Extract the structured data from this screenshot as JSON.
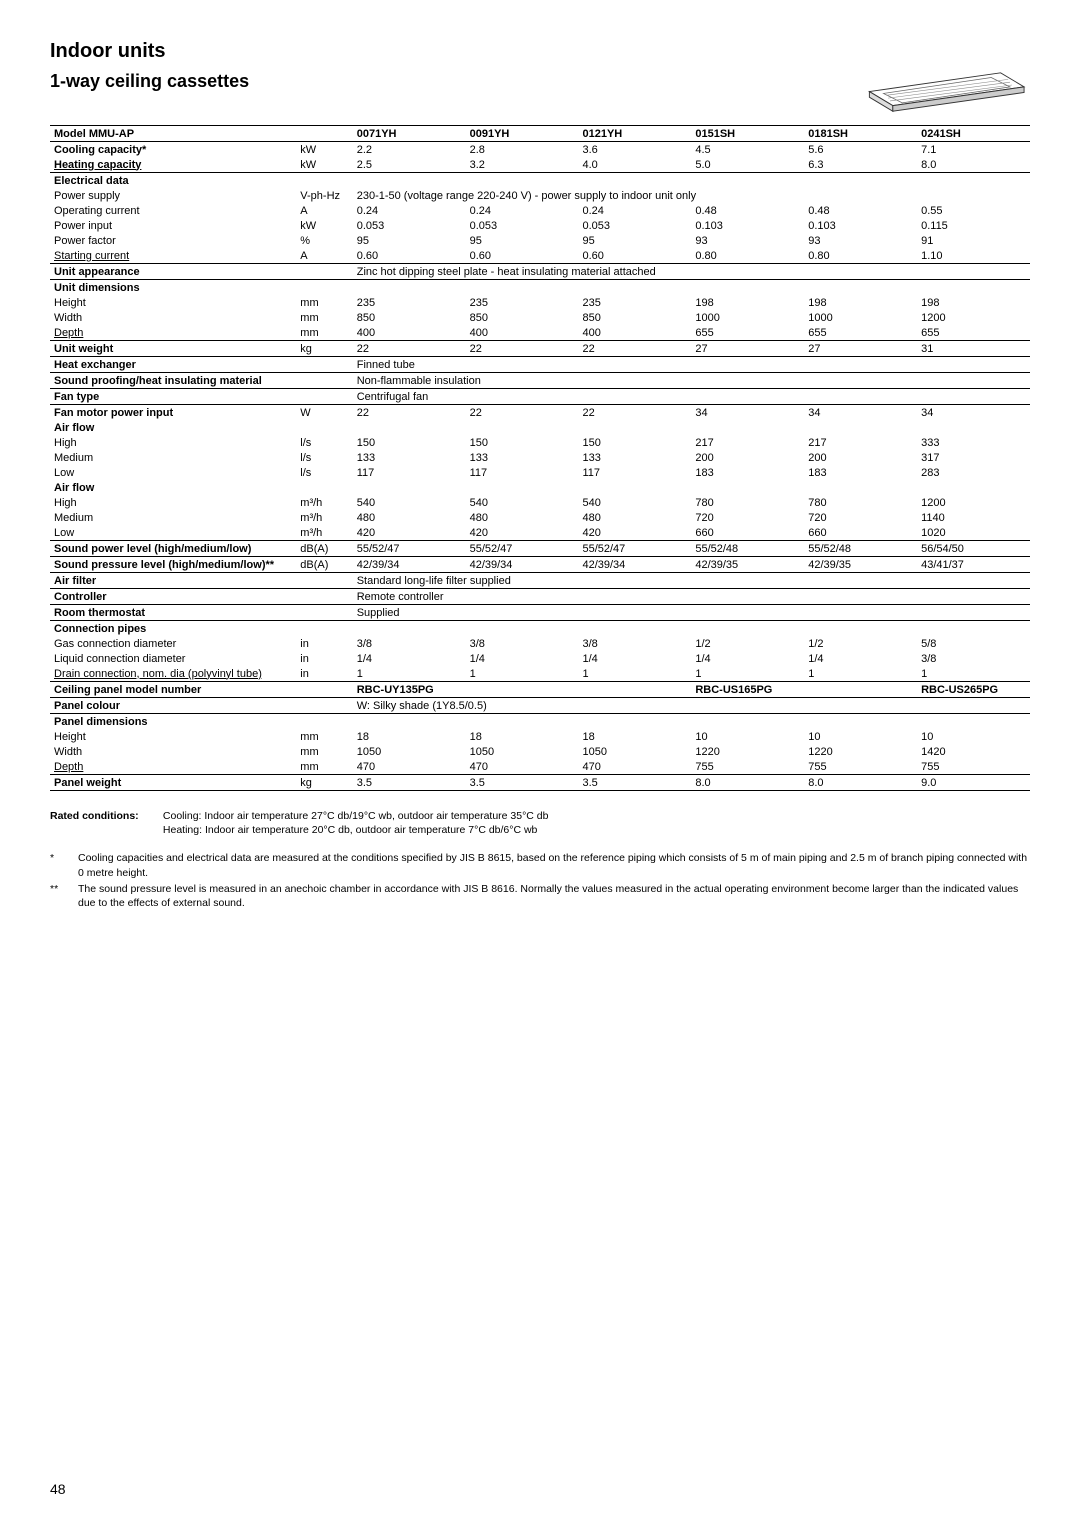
{
  "page_number": "48",
  "heading1": "Indoor units",
  "heading2": "1-way ceiling cassettes",
  "models": [
    "0071YH",
    "0091YH",
    "0121YH",
    "0151SH",
    "0181SH",
    "0241SH"
  ],
  "rows": [
    {
      "label": "Model MMU-AP",
      "unit": "",
      "vals": [
        "0071YH",
        "0091YH",
        "0121YH",
        "0151SH",
        "0181SH",
        "0241SH"
      ],
      "bold": true,
      "top": true,
      "bottom": true
    },
    {
      "label": "Cooling capacity*",
      "unit": "kW",
      "vals": [
        "2.2",
        "2.8",
        "3.6",
        "4.5",
        "5.6",
        "7.1"
      ],
      "bold": true
    },
    {
      "label": "Heating capacity",
      "unit": "kW",
      "vals": [
        "2.5",
        "3.2",
        "4.0",
        "5.0",
        "6.3",
        "8.0"
      ],
      "bold": true,
      "underline": true,
      "bottom": true
    },
    {
      "label": "Electrical data",
      "unit": "",
      "vals": [
        "",
        "",
        "",
        "",
        "",
        ""
      ],
      "bold": true
    },
    {
      "label": "Power supply",
      "unit": "V-ph-Hz",
      "vals": [
        "230-1-50 (voltage range 220-240 V) - power supply to indoor unit only",
        "",
        "",
        "",
        "",
        ""
      ],
      "span": 6
    },
    {
      "label": "Operating current",
      "unit": "A",
      "vals": [
        "0.24",
        "0.24",
        "0.24",
        "0.48",
        "0.48",
        "0.55"
      ]
    },
    {
      "label": "Power input",
      "unit": "kW",
      "vals": [
        "0.053",
        "0.053",
        "0.053",
        "0.103",
        "0.103",
        "0.115"
      ]
    },
    {
      "label": "Power factor",
      "unit": "%",
      "vals": [
        "95",
        "95",
        "95",
        "93",
        "93",
        "91"
      ]
    },
    {
      "label": "Starting current",
      "unit": "A",
      "vals": [
        "0.60",
        "0.60",
        "0.60",
        "0.80",
        "0.80",
        "1.10"
      ],
      "underline": true,
      "bottom": true
    },
    {
      "label": "Unit appearance",
      "unit": "",
      "vals": [
        "Zinc hot dipping steel plate - heat insulating material attached",
        "",
        "",
        "",
        "",
        ""
      ],
      "bold": true,
      "span": 6,
      "bottom": true
    },
    {
      "label": "Unit dimensions",
      "unit": "",
      "vals": [
        "",
        "",
        "",
        "",
        "",
        ""
      ],
      "bold": true
    },
    {
      "label": "Height",
      "unit": "mm",
      "vals": [
        "235",
        "235",
        "235",
        "198",
        "198",
        "198"
      ]
    },
    {
      "label": "Width",
      "unit": "mm",
      "vals": [
        "850",
        "850",
        "850",
        "1000",
        "1000",
        "1200"
      ]
    },
    {
      "label": "Depth",
      "unit": "mm",
      "vals": [
        "400",
        "400",
        "400",
        "655",
        "655",
        "655"
      ],
      "underline": true,
      "bottom": true
    },
    {
      "label": "Unit weight",
      "unit": "kg",
      "vals": [
        "22",
        "22",
        "22",
        "27",
        "27",
        "31"
      ],
      "bold": true,
      "bottom": true
    },
    {
      "label": "Heat exchanger",
      "unit": "",
      "vals": [
        "Finned tube",
        "",
        "",
        "",
        "",
        ""
      ],
      "bold": true,
      "span": 6,
      "bottom": true
    },
    {
      "label": "Sound proofing/heat insulating material",
      "unit": "",
      "vals": [
        "Non-flammable insulation",
        "",
        "",
        "",
        "",
        ""
      ],
      "bold": true,
      "span": 6,
      "bottom": true
    },
    {
      "label": "Fan type",
      "unit": "",
      "vals": [
        "Centrifugal fan",
        "",
        "",
        "",
        "",
        ""
      ],
      "bold": true,
      "span": 6,
      "bottom": true
    },
    {
      "label": "Fan motor power input",
      "unit": "W",
      "vals": [
        "22",
        "22",
        "22",
        "34",
        "34",
        "34"
      ],
      "bold": true
    },
    {
      "label": "Air flow",
      "unit": "",
      "vals": [
        "",
        "",
        "",
        "",
        "",
        ""
      ],
      "bold": true
    },
    {
      "label": "High",
      "unit": "l/s",
      "vals": [
        "150",
        "150",
        "150",
        "217",
        "217",
        "333"
      ]
    },
    {
      "label": "Medium",
      "unit": "l/s",
      "vals": [
        "133",
        "133",
        "133",
        "200",
        "200",
        "317"
      ]
    },
    {
      "label": "Low",
      "unit": "l/s",
      "vals": [
        "117",
        "117",
        "117",
        "183",
        "183",
        "283"
      ]
    },
    {
      "label": "Air flow",
      "unit": "",
      "vals": [
        "",
        "",
        "",
        "",
        "",
        ""
      ],
      "bold": true
    },
    {
      "label": "High",
      "unit": "m³/h",
      "vals": [
        "540",
        "540",
        "540",
        "780",
        "780",
        "1200"
      ]
    },
    {
      "label": "Medium",
      "unit": "m³/h",
      "vals": [
        "480",
        "480",
        "480",
        "720",
        "720",
        "1140"
      ]
    },
    {
      "label": "Low",
      "unit": "m³/h",
      "vals": [
        "420",
        "420",
        "420",
        "660",
        "660",
        "1020"
      ],
      "bottom": true
    },
    {
      "label": "Sound power level (high/medium/low)",
      "unit": "dB(A)",
      "vals": [
        "55/52/47",
        "55/52/47",
        "55/52/47",
        "55/52/48",
        "55/52/48",
        "56/54/50"
      ],
      "bold": true,
      "bottom": true
    },
    {
      "label": "Sound pressure level  (high/medium/low)**",
      "unit": "dB(A)",
      "vals": [
        "42/39/34",
        "42/39/34",
        "42/39/34",
        "42/39/35",
        "42/39/35",
        "43/41/37"
      ],
      "bold": true,
      "bottom": true
    },
    {
      "label": "Air filter",
      "unit": "",
      "vals": [
        "Standard long-life filter supplied",
        "",
        "",
        "",
        "",
        ""
      ],
      "bold": true,
      "span": 6,
      "bottom": true
    },
    {
      "label": "Controller",
      "unit": "",
      "vals": [
        "Remote controller",
        "",
        "",
        "",
        "",
        ""
      ],
      "bold": true,
      "span": 6,
      "bottom": true
    },
    {
      "label": "Room thermostat",
      "unit": "",
      "vals": [
        "Supplied",
        "",
        "",
        "",
        "",
        ""
      ],
      "bold": true,
      "span": 6,
      "bottom": true
    },
    {
      "label": "Connection pipes",
      "unit": "",
      "vals": [
        "",
        "",
        "",
        "",
        "",
        ""
      ],
      "bold": true
    },
    {
      "label": "Gas connection diameter",
      "unit": "in",
      "vals": [
        "3/8",
        "3/8",
        "3/8",
        "1/2",
        "1/2",
        "5/8"
      ]
    },
    {
      "label": "Liquid connection diameter",
      "unit": "in",
      "vals": [
        "1/4",
        "1/4",
        "1/4",
        "1/4",
        "1/4",
        "3/8"
      ]
    },
    {
      "label": "Drain connection, nom. dia (polyvinyl tube)",
      "unit": "in",
      "vals": [
        "1",
        "1",
        "1",
        "1",
        "1",
        "1"
      ],
      "underline": true,
      "bottom": true
    },
    {
      "label": "Ceiling panel model number",
      "unit": "",
      "vals": [
        "RBC-UY135PG",
        "",
        "",
        "RBC-US165PG",
        "",
        "RBC-US265PG"
      ],
      "bold": true,
      "valBold": true,
      "bottom": true
    },
    {
      "label": "Panel colour",
      "unit": "",
      "vals": [
        "W: Silky shade (1Y8.5/0.5)",
        "",
        "",
        "",
        "",
        ""
      ],
      "bold": true,
      "span": 6,
      "bottom": true
    },
    {
      "label": "Panel dimensions",
      "unit": "",
      "vals": [
        "",
        "",
        "",
        "",
        "",
        ""
      ],
      "bold": true
    },
    {
      "label": "Height",
      "unit": "mm",
      "vals": [
        "18",
        "18",
        "18",
        "10",
        "10",
        "10"
      ]
    },
    {
      "label": "Width",
      "unit": "mm",
      "vals": [
        "1050",
        "1050",
        "1050",
        "1220",
        "1220",
        "1420"
      ]
    },
    {
      "label": "Depth",
      "unit": "mm",
      "vals": [
        "470",
        "470",
        "470",
        "755",
        "755",
        "755"
      ],
      "underline": true,
      "bottom": true
    },
    {
      "label": "Panel weight",
      "unit": "kg",
      "vals": [
        "3.5",
        "3.5",
        "3.5",
        "8.0",
        "8.0",
        "9.0"
      ],
      "bold": true,
      "bottom": true
    }
  ],
  "footnotes": {
    "rated_label": "Rated conditions:",
    "rated_text1": "Cooling: Indoor air temperature 27°C db/19°C wb, outdoor air temperature 35°C db",
    "rated_text2": "Heating: Indoor air temperature 20°C db, outdoor air temperature 7°C db/6°C wb",
    "note1_mark": "*",
    "note1": "Cooling capacities and electrical data are measured at the conditions specified by JIS B 8615, based on the reference piping which consists of 5 m of main piping and 2.5 m of branch piping connected with 0 metre height.",
    "note2_mark": "**",
    "note2": "The sound pressure level is measured in an anechoic chamber in accordance with JIS B 8616. Normally the values measured in the actual operating environment become larger than the indicated values due to the effects of external sound."
  }
}
